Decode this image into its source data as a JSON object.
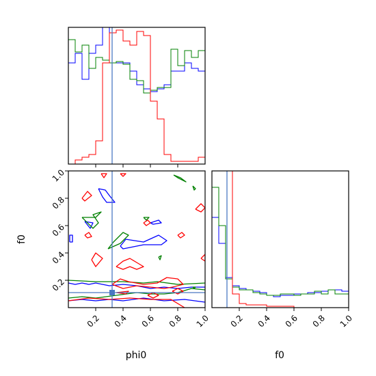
{
  "chart_data": [
    {
      "panel": "phi0-histogram",
      "type": "step",
      "xlim": [
        0.0,
        1.0
      ],
      "truth_x": 0.32,
      "x_bin_edges": [
        0.0,
        0.05,
        0.1,
        0.15,
        0.2,
        0.25,
        0.3,
        0.35,
        0.4,
        0.45,
        0.5,
        0.55,
        0.6,
        0.65,
        0.7,
        0.75,
        0.8,
        0.85,
        0.9,
        0.95,
        1.0
      ],
      "series": [
        {
          "color": "#0000ff",
          "values": [
            0.74,
            0.81,
            0.62,
            0.81,
            0.87,
            1.0,
            0.74,
            0.74,
            0.74,
            0.68,
            0.58,
            0.55,
            0.53,
            0.55,
            0.58,
            0.68,
            0.68,
            0.74,
            0.7,
            0.68
          ]
        },
        {
          "color": "#008000",
          "values": [
            0.91,
            0.82,
            0.87,
            0.7,
            0.78,
            0.76,
            0.74,
            0.75,
            0.73,
            0.62,
            0.61,
            0.52,
            0.54,
            0.56,
            0.56,
            0.84,
            0.72,
            0.83,
            0.78,
            0.83
          ]
        },
        {
          "color": "#ff0000",
          "values": [
            0.0,
            0.03,
            0.05,
            0.07,
            0.17,
            0.74,
            0.96,
            0.98,
            0.9,
            0.87,
            0.97,
            0.94,
            0.46,
            0.33,
            0.07,
            0.02,
            0.02,
            0.02,
            0.02,
            0.05
          ]
        }
      ]
    },
    {
      "panel": "phi0-f0-contour",
      "type": "contour",
      "xlabel": "phi0",
      "ylabel": "f0",
      "xlim": [
        0.0,
        1.0
      ],
      "ylim": [
        0.0,
        1.0
      ],
      "x_ticks": [
        "0.2",
        "0.4",
        "0.6",
        "0.8",
        "1.0"
      ],
      "y_ticks": [
        "0.2",
        "0.4",
        "0.6",
        "0.8",
        "1.0"
      ],
      "truth_point": {
        "phi0": 0.32,
        "f0": 0.11
      },
      "series": [
        {
          "color": "#0000ff",
          "paths": [
            [
              [
                0.0,
                0.18
              ],
              [
                0.05,
                0.17
              ],
              [
                0.1,
                0.18
              ],
              [
                0.15,
                0.17
              ],
              [
                0.2,
                0.18
              ],
              [
                0.3,
                0.16
              ],
              [
                0.4,
                0.17
              ],
              [
                0.5,
                0.16
              ],
              [
                0.6,
                0.14
              ],
              [
                0.7,
                0.15
              ],
              [
                0.8,
                0.14
              ],
              [
                0.9,
                0.15
              ],
              [
                1.0,
                0.15
              ]
            ],
            [
              [
                0.0,
                0.05
              ],
              [
                0.1,
                0.06
              ],
              [
                0.2,
                0.05
              ],
              [
                0.3,
                0.06
              ],
              [
                0.4,
                0.05
              ],
              [
                0.55,
                0.07
              ],
              [
                0.7,
                0.05
              ],
              [
                0.85,
                0.06
              ],
              [
                1.0,
                0.04
              ]
            ],
            [
              [
                0.01,
                0.48
              ],
              [
                0.03,
                0.48
              ],
              [
                0.03,
                0.53
              ],
              [
                0.01,
                0.53
              ],
              [
                0.01,
                0.48
              ]
            ],
            [
              [
                0.22,
                0.87
              ],
              [
                0.27,
                0.86
              ],
              [
                0.3,
                0.82
              ],
              [
                0.34,
                0.77
              ],
              [
                0.28,
                0.77
              ],
              [
                0.25,
                0.81
              ],
              [
                0.22,
                0.87
              ]
            ],
            [
              [
                0.38,
                0.45
              ],
              [
                0.42,
                0.5
              ],
              [
                0.55,
                0.48
              ],
              [
                0.66,
                0.53
              ],
              [
                0.72,
                0.49
              ],
              [
                0.68,
                0.46
              ],
              [
                0.55,
                0.46
              ],
              [
                0.4,
                0.43
              ],
              [
                0.38,
                0.45
              ]
            ],
            [
              [
                0.6,
                0.62
              ],
              [
                0.66,
                0.64
              ],
              [
                0.68,
                0.62
              ],
              [
                0.62,
                0.61
              ],
              [
                0.6,
                0.62
              ]
            ],
            [
              [
                0.12,
                0.63
              ],
              [
                0.18,
                0.62
              ],
              [
                0.16,
                0.58
              ],
              [
                0.12,
                0.63
              ]
            ]
          ]
        },
        {
          "color": "#008000",
          "paths": [
            [
              [
                0.0,
                0.07
              ],
              [
                0.1,
                0.08
              ],
              [
                0.2,
                0.07
              ],
              [
                0.35,
                0.09
              ],
              [
                0.5,
                0.11
              ],
              [
                0.6,
                0.1
              ],
              [
                0.7,
                0.1
              ],
              [
                0.8,
                0.11
              ],
              [
                0.9,
                0.14
              ],
              [
                1.0,
                0.13
              ]
            ],
            [
              [
                0.0,
                0.2
              ],
              [
                0.2,
                0.19
              ],
              [
                0.4,
                0.19
              ],
              [
                0.55,
                0.18
              ],
              [
                0.65,
                0.19
              ],
              [
                0.8,
                0.17
              ],
              [
                1.0,
                0.18
              ]
            ],
            [
              [
                0.1,
                0.66
              ],
              [
                0.18,
                0.58
              ],
              [
                0.22,
                0.62
              ],
              [
                0.18,
                0.68
              ],
              [
                0.24,
                0.7
              ],
              [
                0.2,
                0.66
              ],
              [
                0.1,
                0.66
              ]
            ],
            [
              [
                0.29,
                0.43
              ],
              [
                0.33,
                0.48
              ],
              [
                0.4,
                0.55
              ],
              [
                0.44,
                0.53
              ],
              [
                0.38,
                0.47
              ],
              [
                0.29,
                0.43
              ]
            ],
            [
              [
                0.77,
                0.97
              ],
              [
                0.82,
                0.95
              ],
              [
                0.86,
                0.92
              ],
              [
                0.8,
                0.95
              ],
              [
                0.77,
                0.97
              ]
            ],
            [
              [
                0.91,
                0.89
              ],
              [
                0.93,
                0.87
              ],
              [
                0.92,
                0.86
              ],
              [
                0.91,
                0.89
              ]
            ],
            [
              [
                0.55,
                0.66
              ],
              [
                0.59,
                0.66
              ],
              [
                0.57,
                0.64
              ],
              [
                0.55,
                0.66
              ]
            ],
            [
              [
                0.66,
                0.37
              ],
              [
                0.68,
                0.38
              ],
              [
                0.67,
                0.35
              ],
              [
                0.66,
                0.37
              ]
            ],
            [
              [
                0.91,
                0.15
              ],
              [
                0.93,
                0.15
              ],
              [
                0.92,
                0.14
              ],
              [
                0.91,
                0.15
              ]
            ]
          ]
        },
        {
          "color": "#ff0000",
          "paths": [
            [
              [
                0.0,
                0.05
              ],
              [
                0.15,
                0.07
              ],
              [
                0.3,
                0.06
              ],
              [
                0.45,
                0.07
              ],
              [
                0.6,
                0.06
              ],
              [
                0.75,
                0.06
              ],
              [
                0.85,
                0.0
              ]
            ],
            [
              [
                0.32,
                0.17
              ],
              [
                0.38,
                0.21
              ],
              [
                0.44,
                0.19
              ],
              [
                0.55,
                0.17
              ],
              [
                0.65,
                0.18
              ],
              [
                0.72,
                0.22
              ],
              [
                0.8,
                0.21
              ],
              [
                0.84,
                0.17
              ],
              [
                0.76,
                0.15
              ],
              [
                0.7,
                0.14
              ],
              [
                0.6,
                0.15
              ],
              [
                0.5,
                0.16
              ],
              [
                0.4,
                0.14
              ],
              [
                0.32,
                0.17
              ]
            ],
            [
              [
                0.35,
                0.3
              ],
              [
                0.4,
                0.34
              ],
              [
                0.45,
                0.36
              ],
              [
                0.5,
                0.33
              ],
              [
                0.55,
                0.3
              ],
              [
                0.5,
                0.28
              ],
              [
                0.45,
                0.3
              ],
              [
                0.4,
                0.28
              ],
              [
                0.35,
                0.3
              ]
            ],
            [
              [
                0.17,
                0.35
              ],
              [
                0.2,
                0.4
              ],
              [
                0.25,
                0.36
              ],
              [
                0.2,
                0.3
              ],
              [
                0.17,
                0.35
              ]
            ],
            [
              [
                0.1,
                0.8
              ],
              [
                0.14,
                0.85
              ],
              [
                0.17,
                0.82
              ],
              [
                0.12,
                0.78
              ],
              [
                0.1,
                0.8
              ]
            ],
            [
              [
                0.12,
                0.53
              ],
              [
                0.15,
                0.55
              ],
              [
                0.17,
                0.52
              ],
              [
                0.14,
                0.51
              ],
              [
                0.12,
                0.53
              ]
            ],
            [
              [
                0.24,
                0.98
              ],
              [
                0.28,
                0.98
              ],
              [
                0.26,
                0.95
              ],
              [
                0.24,
                0.98
              ]
            ],
            [
              [
                0.38,
                0.98
              ],
              [
                0.42,
                0.98
              ],
              [
                0.4,
                0.96
              ],
              [
                0.38,
                0.98
              ]
            ],
            [
              [
                0.55,
                0.62
              ],
              [
                0.58,
                0.64
              ],
              [
                0.6,
                0.62
              ],
              [
                0.57,
                0.6
              ],
              [
                0.55,
                0.62
              ]
            ],
            [
              [
                0.8,
                0.53
              ],
              [
                0.83,
                0.55
              ],
              [
                0.85,
                0.53
              ],
              [
                0.82,
                0.51
              ],
              [
                0.8,
                0.53
              ]
            ],
            [
              [
                0.93,
                0.72
              ],
              [
                0.97,
                0.76
              ],
              [
                1.0,
                0.73
              ],
              [
                0.97,
                0.7
              ],
              [
                0.93,
                0.72
              ]
            ],
            [
              [
                0.97,
                0.36
              ],
              [
                1.0,
                0.39
              ],
              [
                1.0,
                0.34
              ],
              [
                0.97,
                0.36
              ]
            ],
            [
              [
                0.35,
                0.11
              ],
              [
                0.44,
                0.12
              ],
              [
                0.42,
                0.1
              ],
              [
                0.35,
                0.11
              ]
            ],
            [
              [
                0.58,
                0.09
              ],
              [
                0.62,
                0.11
              ],
              [
                0.66,
                0.09
              ],
              [
                0.62,
                0.07
              ],
              [
                0.58,
                0.09
              ]
            ],
            [
              [
                0.76,
                0.12
              ],
              [
                0.8,
                0.14
              ],
              [
                0.84,
                0.12
              ],
              [
                0.8,
                0.1
              ],
              [
                0.76,
                0.12
              ]
            ]
          ]
        }
      ]
    },
    {
      "panel": "f0-histogram",
      "type": "step",
      "xlabel": "f0",
      "xlim": [
        0.0,
        1.0
      ],
      "x_ticks": [
        "0.2",
        "0.4",
        "0.6",
        "0.8",
        "1.0"
      ],
      "truth_x": 0.11,
      "x_bin_edges": [
        0.0,
        0.05,
        0.1,
        0.15,
        0.2,
        0.25,
        0.3,
        0.35,
        0.4,
        0.45,
        0.5,
        0.55,
        0.6,
        0.65,
        0.7,
        0.75,
        0.8,
        0.85,
        0.9,
        0.95,
        1.0
      ],
      "series": [
        {
          "color": "#0000ff",
          "values": [
            0.66,
            0.47,
            0.22,
            0.16,
            0.14,
            0.13,
            0.12,
            0.11,
            0.09,
            0.08,
            0.09,
            0.09,
            0.1,
            0.1,
            0.11,
            0.11,
            0.12,
            0.13,
            0.13,
            0.12
          ]
        },
        {
          "color": "#008000",
          "values": [
            0.88,
            0.6,
            0.21,
            0.15,
            0.13,
            0.13,
            0.11,
            0.1,
            0.09,
            0.09,
            0.1,
            0.1,
            0.09,
            0.1,
            0.1,
            0.12,
            0.1,
            0.13,
            0.1,
            0.1
          ]
        },
        {
          "color": "#ff0000",
          "values": [
            1.0,
            1.0,
            1.0,
            0.1,
            0.03,
            0.02,
            0.02,
            0.02,
            0.01,
            0.01,
            0.01,
            0.01,
            0.0,
            0.0,
            0.0,
            0.0,
            0.0,
            0.0,
            0.0,
            0.0
          ]
        }
      ]
    }
  ]
}
